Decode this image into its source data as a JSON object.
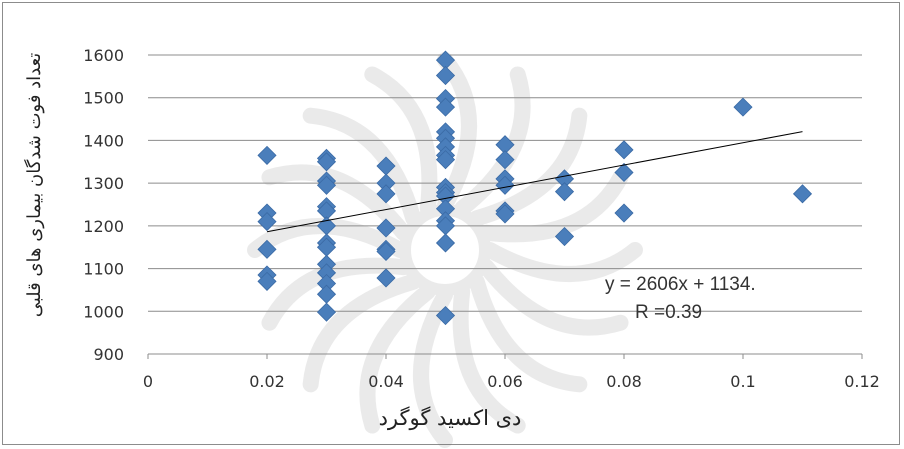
{
  "chart_data": {
    "type": "scatter",
    "xlabel": "دی اکسید گوگرد",
    "ylabel": "تعداد فوت شدگان بیماری های قلبی",
    "xlim": [
      0,
      0.12
    ],
    "ylim": [
      900,
      1600
    ],
    "x_ticks": [
      "0",
      "0.02",
      "0.04",
      "0.06",
      "0.08",
      "0.1",
      "0.12"
    ],
    "y_ticks": [
      "900",
      "1000",
      "1100",
      "1200",
      "1300",
      "1400",
      "1500",
      "1600"
    ],
    "grid": "horizontal",
    "legend": "none",
    "marker_color": "#4a7ebb",
    "trendline": {
      "slope": 2606,
      "intercept": 1134,
      "x_range": [
        0.02,
        0.11
      ],
      "color": "#000000"
    },
    "annotations": [
      "y = 2606x + 1134.",
      "R =0.39"
    ],
    "points": [
      {
        "x": 0.02,
        "y": 1365
      },
      {
        "x": 0.02,
        "y": 1230
      },
      {
        "x": 0.02,
        "y": 1210
      },
      {
        "x": 0.02,
        "y": 1145
      },
      {
        "x": 0.02,
        "y": 1085
      },
      {
        "x": 0.02,
        "y": 1070
      },
      {
        "x": 0.03,
        "y": 1358
      },
      {
        "x": 0.03,
        "y": 1350
      },
      {
        "x": 0.03,
        "y": 1305
      },
      {
        "x": 0.03,
        "y": 1295
      },
      {
        "x": 0.03,
        "y": 1245
      },
      {
        "x": 0.03,
        "y": 1235
      },
      {
        "x": 0.03,
        "y": 1200
      },
      {
        "x": 0.03,
        "y": 1160
      },
      {
        "x": 0.03,
        "y": 1150
      },
      {
        "x": 0.03,
        "y": 1110
      },
      {
        "x": 0.03,
        "y": 1090
      },
      {
        "x": 0.03,
        "y": 1065
      },
      {
        "x": 0.03,
        "y": 1040
      },
      {
        "x": 0.03,
        "y": 998
      },
      {
        "x": 0.04,
        "y": 1340
      },
      {
        "x": 0.04,
        "y": 1300
      },
      {
        "x": 0.04,
        "y": 1275
      },
      {
        "x": 0.04,
        "y": 1195
      },
      {
        "x": 0.04,
        "y": 1145
      },
      {
        "x": 0.04,
        "y": 1140
      },
      {
        "x": 0.04,
        "y": 1078
      },
      {
        "x": 0.05,
        "y": 1588
      },
      {
        "x": 0.05,
        "y": 1552
      },
      {
        "x": 0.05,
        "y": 1498
      },
      {
        "x": 0.05,
        "y": 1478
      },
      {
        "x": 0.05,
        "y": 1420
      },
      {
        "x": 0.05,
        "y": 1405
      },
      {
        "x": 0.05,
        "y": 1385
      },
      {
        "x": 0.05,
        "y": 1365
      },
      {
        "x": 0.05,
        "y": 1355
      },
      {
        "x": 0.05,
        "y": 1290
      },
      {
        "x": 0.05,
        "y": 1278
      },
      {
        "x": 0.05,
        "y": 1270
      },
      {
        "x": 0.05,
        "y": 1240
      },
      {
        "x": 0.05,
        "y": 1212
      },
      {
        "x": 0.05,
        "y": 1200
      },
      {
        "x": 0.05,
        "y": 1160
      },
      {
        "x": 0.05,
        "y": 990
      },
      {
        "x": 0.06,
        "y": 1390
      },
      {
        "x": 0.06,
        "y": 1355
      },
      {
        "x": 0.06,
        "y": 1310
      },
      {
        "x": 0.06,
        "y": 1295
      },
      {
        "x": 0.06,
        "y": 1235
      },
      {
        "x": 0.06,
        "y": 1228
      },
      {
        "x": 0.07,
        "y": 1310
      },
      {
        "x": 0.07,
        "y": 1280
      },
      {
        "x": 0.07,
        "y": 1175
      },
      {
        "x": 0.08,
        "y": 1378
      },
      {
        "x": 0.08,
        "y": 1325
      },
      {
        "x": 0.08,
        "y": 1230
      },
      {
        "x": 0.1,
        "y": 1478
      },
      {
        "x": 0.11,
        "y": 1275
      }
    ]
  }
}
